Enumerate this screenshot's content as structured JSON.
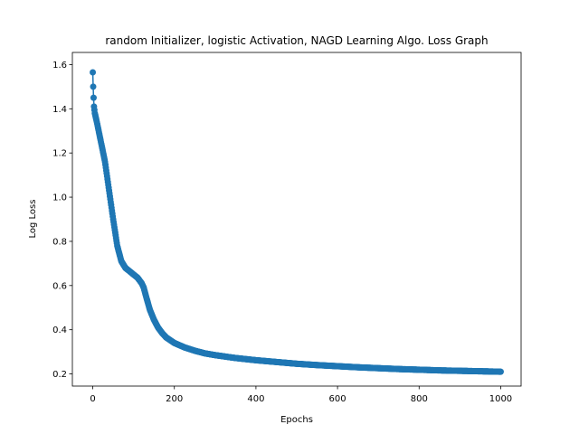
{
  "chart_data": {
    "type": "line",
    "title": "random Initializer, logistic Activation, NAGD Learning Algo. Loss Graph",
    "xlabel": "Epochs",
    "ylabel": "Log Loss",
    "xlim": [
      -50,
      1050
    ],
    "ylim": [
      0.145,
      1.655
    ],
    "xticks": [
      0,
      200,
      400,
      600,
      800,
      1000
    ],
    "xtick_labels": [
      "0",
      "200",
      "400",
      "600",
      "800",
      "1000"
    ],
    "yticks": [
      0.2,
      0.4,
      0.6,
      0.8,
      1.0,
      1.2,
      1.4,
      1.6
    ],
    "ytick_labels": [
      "0.2",
      "0.4",
      "0.6",
      "0.8",
      "1.0",
      "1.2",
      "1.4",
      "1.6"
    ],
    "grid": false,
    "legend": "none",
    "marker": "circle",
    "color": "#1f77b4",
    "series": [
      {
        "x": [
          0,
          1,
          2,
          3,
          5,
          10,
          20,
          30,
          40,
          50,
          60,
          70,
          80,
          90,
          100,
          110,
          120,
          125,
          130,
          140,
          150,
          160,
          170,
          180,
          200,
          225,
          250,
          275,
          300,
          350,
          400,
          450,
          500,
          550,
          600,
          650,
          700,
          750,
          800,
          850,
          900,
          950,
          1000
        ],
        "values": [
          1.565,
          1.5,
          1.45,
          1.41,
          1.38,
          1.34,
          1.25,
          1.16,
          1.03,
          0.9,
          0.78,
          0.71,
          0.68,
          0.665,
          0.65,
          0.635,
          0.61,
          0.59,
          0.555,
          0.49,
          0.445,
          0.41,
          0.385,
          0.365,
          0.34,
          0.32,
          0.305,
          0.293,
          0.285,
          0.272,
          0.262,
          0.254,
          0.246,
          0.24,
          0.235,
          0.23,
          0.226,
          0.222,
          0.219,
          0.216,
          0.214,
          0.212,
          0.21
        ]
      }
    ]
  }
}
